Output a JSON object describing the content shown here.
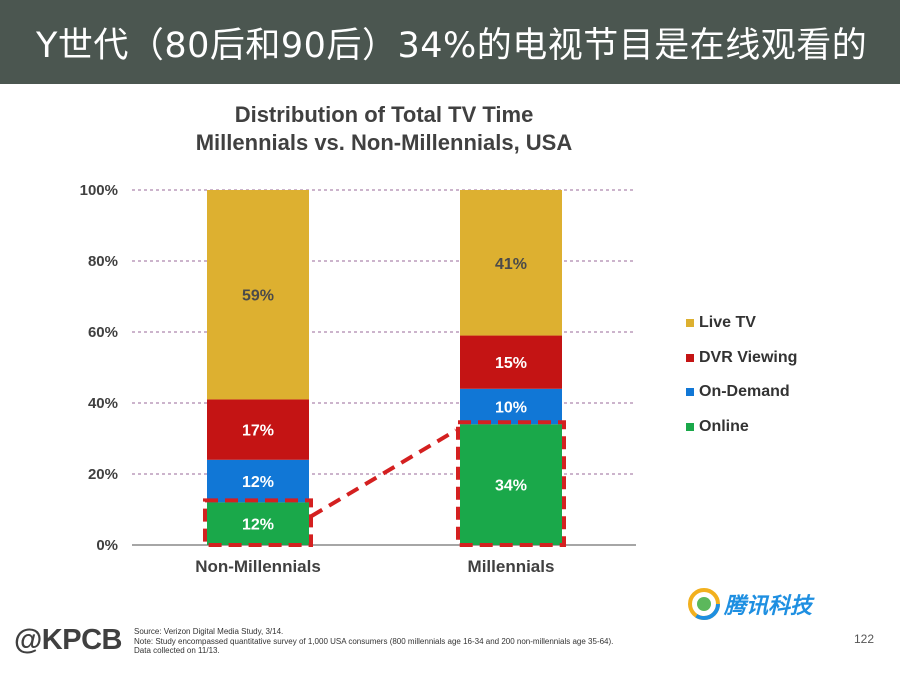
{
  "banner": {
    "title": "Y世代（80后和90后）34%的电视节目是在线观看的"
  },
  "chart_data": {
    "type": "stacked-bar",
    "title": "Distribution of Total TV Time",
    "subtitle": "Millennials vs. Non-Millennials, USA",
    "categories": [
      "Non-Millennials",
      "Millennials"
    ],
    "series": [
      {
        "name": "Online",
        "values": [
          12,
          34
        ],
        "labels": [
          "12%",
          "34%"
        ],
        "color": "#1aa84a"
      },
      {
        "name": "On-Demand",
        "values": [
          12,
          10
        ],
        "labels": [
          "12%",
          "10%"
        ],
        "color": "#1177d6"
      },
      {
        "name": "DVR Viewing",
        "values": [
          17,
          15
        ],
        "labels": [
          "17%",
          "15%"
        ],
        "color": "#c41414"
      },
      {
        "name": "Live TV",
        "values": [
          59,
          41
        ],
        "labels": [
          "59%",
          "41%"
        ],
        "color": "#ddb030"
      }
    ],
    "legend_order": [
      "Live TV",
      "DVR Viewing",
      "On-Demand",
      "Online"
    ],
    "legend_position": "right",
    "ylim": [
      0,
      100
    ],
    "y_ticks": [
      "0%",
      "20%",
      "40%",
      "60%",
      "80%",
      "100%"
    ],
    "gridlines": true,
    "highlight": {
      "series": "Online",
      "style": "dashed red outline with dashed connector",
      "color": "#d42020"
    }
  },
  "footer": {
    "logo": "@KPCB",
    "notes": [
      "Source: Verizon Digital Media Study, 3/14.",
      "Note: Study encompassed quantitative survey of 1,000 USA consumers (800 millennials age 16-34 and 200 non-millennials age 35-64).",
      "Data collected on 11/13."
    ],
    "page_number": "122",
    "tencent_label": "腾讯科技"
  }
}
